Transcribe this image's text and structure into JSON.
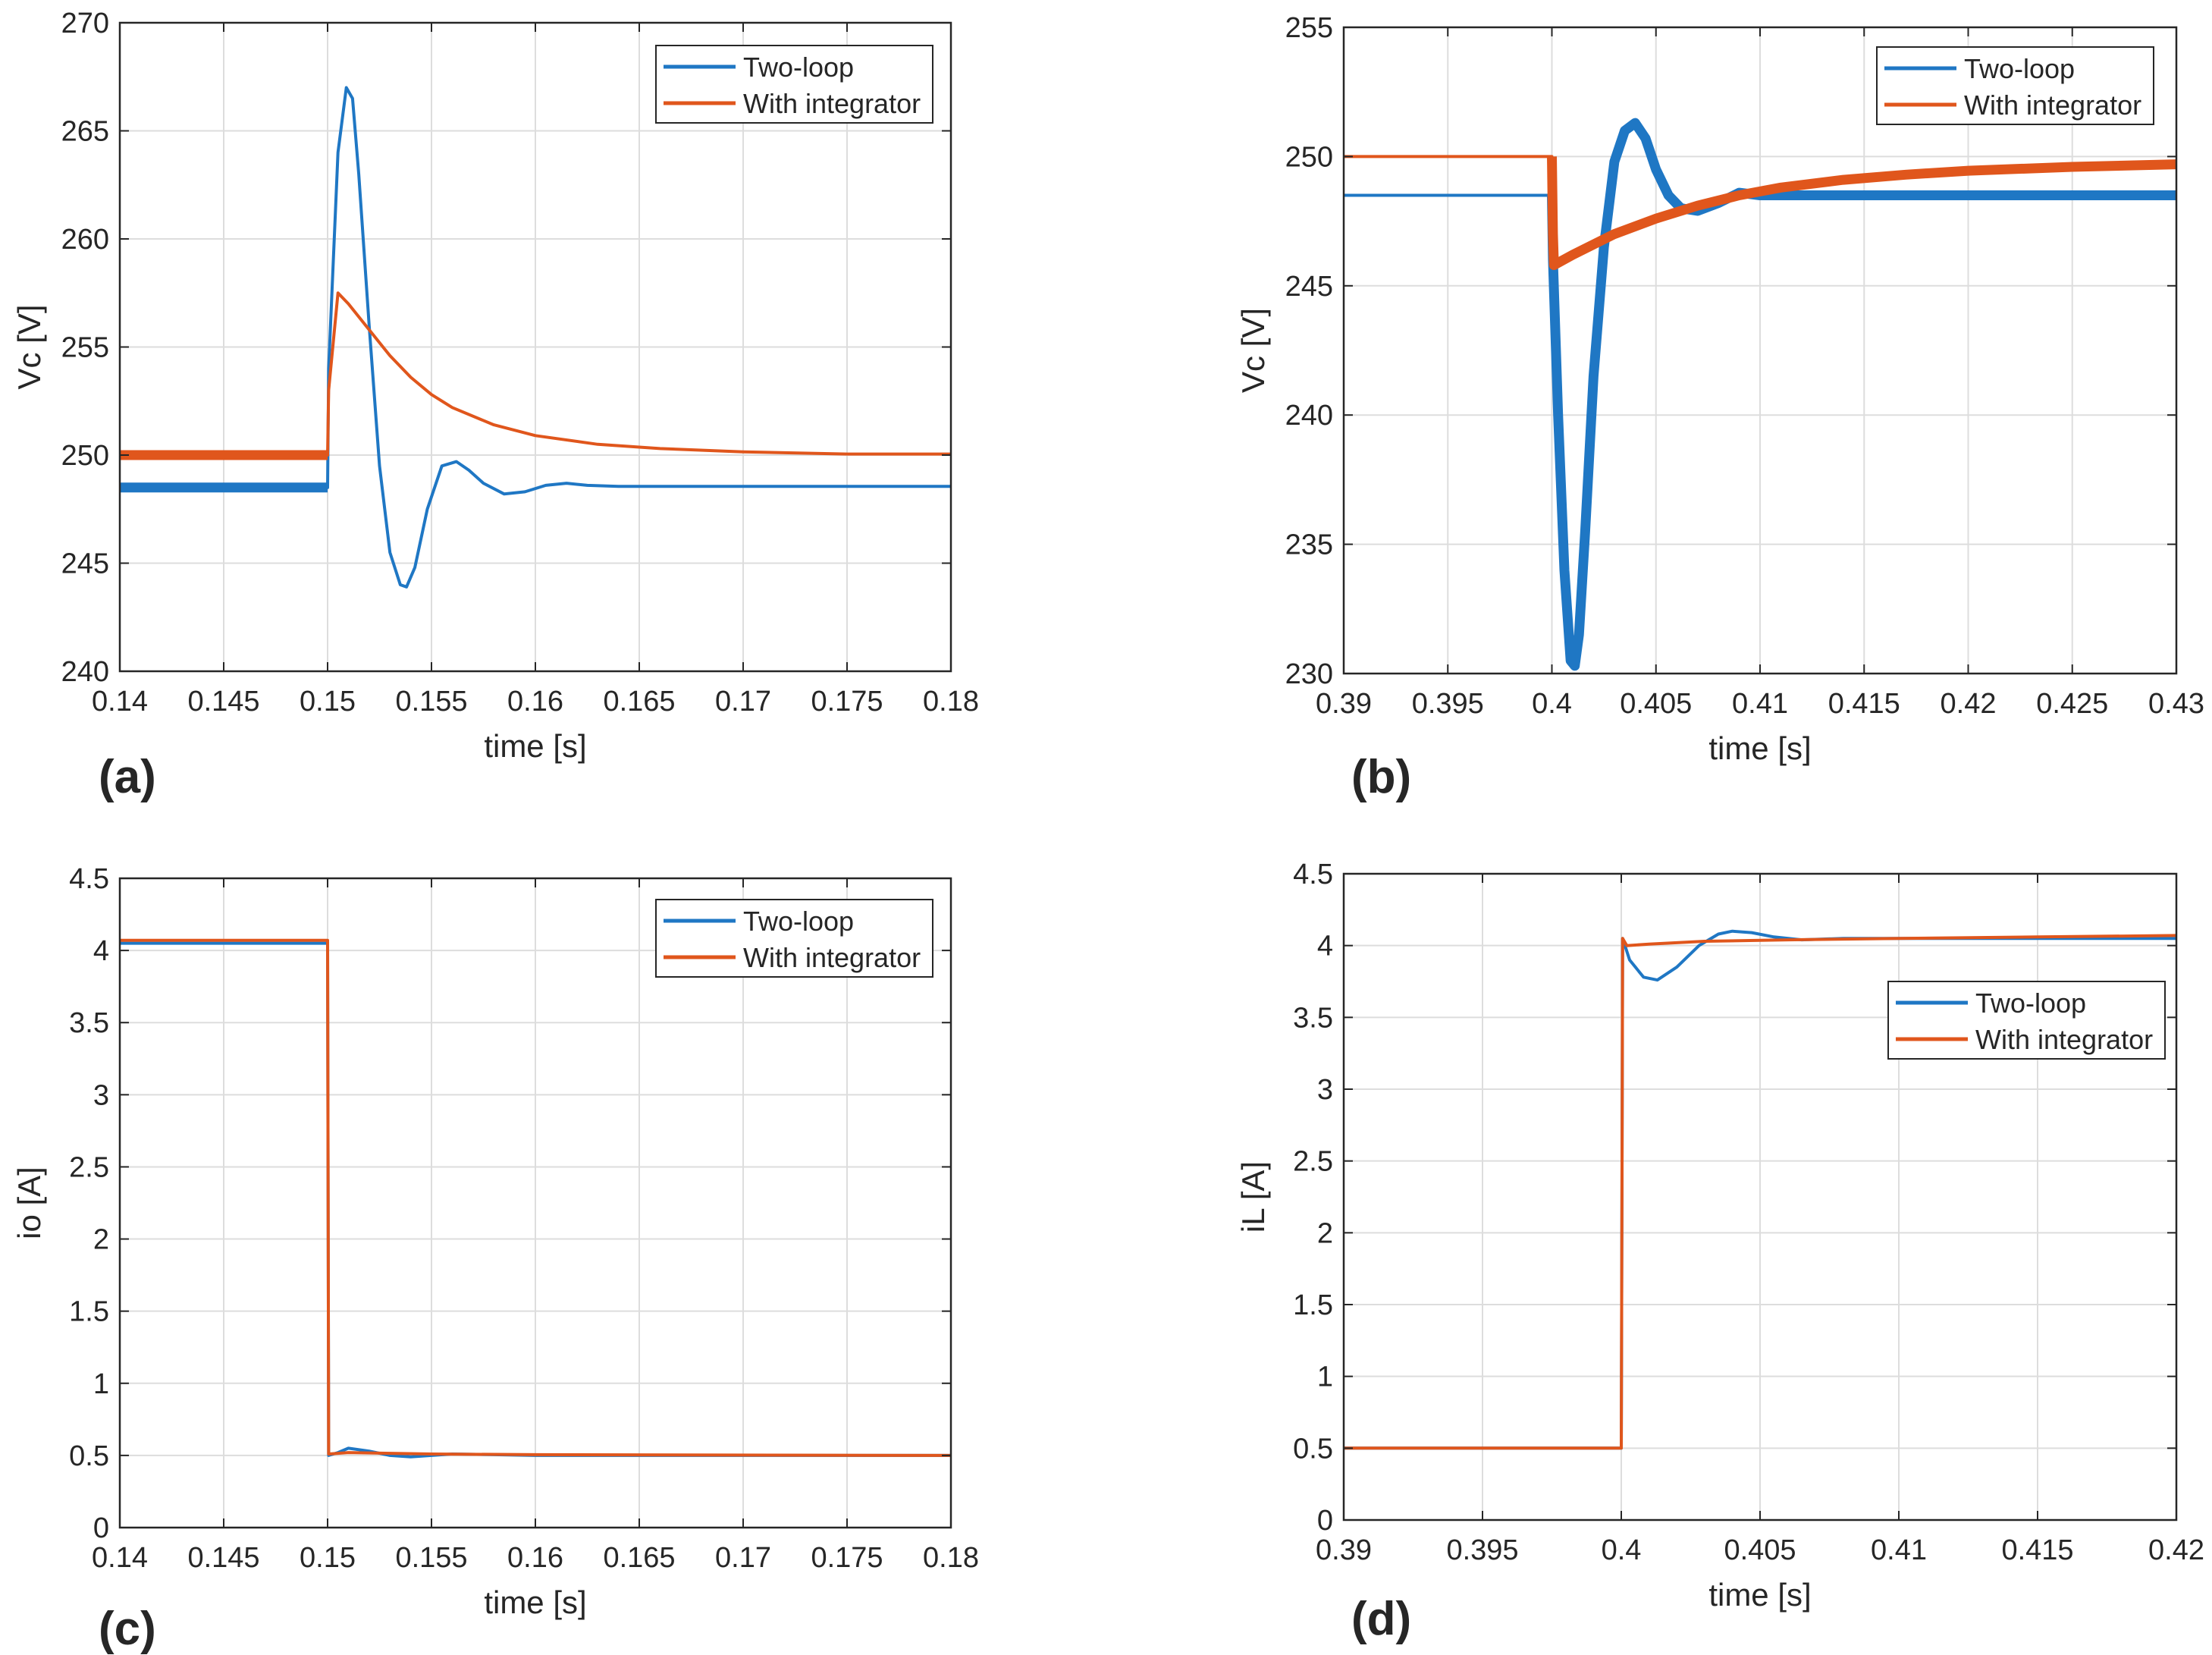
{
  "colors": {
    "two_loop": "#1f77c4",
    "integrator": "#e0561c",
    "grid": "#dddddd",
    "axis": "#262626"
  },
  "chart_data": [
    {
      "type": "line",
      "panel_label": "(a)",
      "xlabel": "time [s]",
      "ylabel": "Vc [V]",
      "xlim": [
        0.14,
        0.18
      ],
      "ylim": [
        240,
        270
      ],
      "xticks": [
        0.14,
        0.145,
        0.15,
        0.155,
        0.16,
        0.165,
        0.17,
        0.175,
        0.18
      ],
      "xtick_labels": [
        "0.14",
        "0.145",
        "0.15",
        "0.155",
        "0.16",
        "0.165",
        "0.17",
        "0.175",
        "0.18"
      ],
      "yticks": [
        240,
        245,
        250,
        255,
        260,
        265,
        270
      ],
      "ytick_labels": [
        "240",
        "245",
        "250",
        "255",
        "260",
        "265",
        "270"
      ],
      "grid": true,
      "legend_position": "top-right",
      "series": [
        {
          "name": "Two-loop",
          "color": "#1f77c4",
          "x": [
            0.14,
            0.15,
            0.15005,
            0.1505,
            0.1509,
            0.1512,
            0.1515,
            0.152,
            0.1525,
            0.153,
            0.1535,
            0.1538,
            0.1542,
            0.1548,
            0.1555,
            0.1562,
            0.1568,
            0.1575,
            0.1585,
            0.1595,
            0.1605,
            0.1615,
            0.1625,
            0.164,
            0.17,
            0.18
          ],
          "y": [
            248.5,
            248.5,
            254,
            264,
            267,
            266.5,
            263,
            256,
            249.5,
            245.5,
            244,
            243.9,
            244.8,
            247.5,
            249.5,
            249.7,
            249.3,
            248.7,
            248.2,
            248.3,
            248.6,
            248.7,
            248.6,
            248.55,
            248.55,
            248.55
          ],
          "thick_until": 0.15
        },
        {
          "name": "With integrator",
          "color": "#e0561c",
          "x": [
            0.14,
            0.15,
            0.15005,
            0.1505,
            0.151,
            0.152,
            0.153,
            0.154,
            0.155,
            0.156,
            0.158,
            0.16,
            0.163,
            0.166,
            0.17,
            0.175,
            0.18
          ],
          "y": [
            250,
            250,
            253,
            257.5,
            257,
            255.8,
            254.6,
            253.6,
            252.8,
            252.2,
            251.4,
            250.9,
            250.5,
            250.3,
            250.15,
            250.05,
            250.05
          ],
          "thick_until": 0.15
        }
      ]
    },
    {
      "type": "line",
      "panel_label": "(b)",
      "xlabel": "time [s]",
      "ylabel": "Vc [V]",
      "xlim": [
        0.39,
        0.43
      ],
      "ylim": [
        230,
        255
      ],
      "xticks": [
        0.39,
        0.395,
        0.4,
        0.405,
        0.41,
        0.415,
        0.42,
        0.425,
        0.43
      ],
      "xtick_labels": [
        "0.39",
        "0.395",
        "0.4",
        "0.405",
        "0.41",
        "0.415",
        "0.42",
        "0.425",
        "0.43"
      ],
      "yticks": [
        230,
        235,
        240,
        245,
        250,
        255
      ],
      "ytick_labels": [
        "230",
        "235",
        "240",
        "245",
        "250",
        "255"
      ],
      "grid": true,
      "legend_position": "top-right",
      "series": [
        {
          "name": "Two-loop",
          "color": "#1f77c4",
          "x": [
            0.39,
            0.4,
            0.40005,
            0.4003,
            0.4006,
            0.4009,
            0.4011,
            0.4013,
            0.4016,
            0.402,
            0.4025,
            0.403,
            0.4035,
            0.404,
            0.4045,
            0.405,
            0.4056,
            0.4062,
            0.407,
            0.408,
            0.409,
            0.41,
            0.412,
            0.415,
            0.43
          ],
          "y": [
            248.5,
            248.5,
            246,
            240,
            234,
            230.5,
            230.3,
            231.5,
            235.5,
            241.5,
            246.5,
            249.8,
            251,
            251.3,
            250.7,
            249.5,
            248.5,
            248,
            247.9,
            248.2,
            248.6,
            248.5,
            248.5,
            248.5,
            248.5
          ],
          "thick_from": 0.4
        },
        {
          "name": "With integrator",
          "color": "#e0561c",
          "x": [
            0.39,
            0.4,
            0.40005,
            0.4001,
            0.401,
            0.403,
            0.405,
            0.407,
            0.409,
            0.411,
            0.414,
            0.417,
            0.42,
            0.425,
            0.43
          ],
          "y": [
            250,
            250,
            247,
            245.8,
            246.2,
            247,
            247.6,
            248.1,
            248.5,
            248.8,
            249.1,
            249.3,
            249.45,
            249.6,
            249.7
          ],
          "thick_from": 0.4
        }
      ]
    },
    {
      "type": "line",
      "panel_label": "(c)",
      "xlabel": "time [s]",
      "ylabel": "io [A]",
      "xlim": [
        0.14,
        0.18
      ],
      "ylim": [
        0,
        4.5
      ],
      "xticks": [
        0.14,
        0.145,
        0.15,
        0.155,
        0.16,
        0.165,
        0.17,
        0.175,
        0.18
      ],
      "xtick_labels": [
        "0.14",
        "0.145",
        "0.15",
        "0.155",
        "0.16",
        "0.165",
        "0.17",
        "0.175",
        "0.18"
      ],
      "yticks": [
        0,
        0.5,
        1,
        1.5,
        2,
        2.5,
        3,
        3.5,
        4,
        4.5
      ],
      "ytick_labels": [
        "0",
        "0.5",
        "1",
        "1.5",
        "2",
        "2.5",
        "3",
        "3.5",
        "4",
        "4.5"
      ],
      "grid": true,
      "legend_position": "top-right",
      "series": [
        {
          "name": "Two-loop",
          "color": "#1f77c4",
          "x": [
            0.14,
            0.15,
            0.15005,
            0.1505,
            0.151,
            0.152,
            0.153,
            0.154,
            0.155,
            0.156,
            0.158,
            0.16,
            0.18
          ],
          "y": [
            4.05,
            4.05,
            0.5,
            0.52,
            0.55,
            0.53,
            0.5,
            0.49,
            0.5,
            0.51,
            0.505,
            0.5,
            0.5
          ]
        },
        {
          "name": "With integrator",
          "color": "#e0561c",
          "x": [
            0.14,
            0.15,
            0.15005,
            0.151,
            0.155,
            0.16,
            0.18
          ],
          "y": [
            4.07,
            4.07,
            0.51,
            0.52,
            0.51,
            0.505,
            0.5
          ]
        }
      ]
    },
    {
      "type": "line",
      "panel_label": "(d)",
      "xlabel": "time [s]",
      "ylabel": "iL [A]",
      "xlim": [
        0.39,
        0.42
      ],
      "ylim": [
        0,
        4.5
      ],
      "xticks": [
        0.39,
        0.395,
        0.4,
        0.405,
        0.41,
        0.415,
        0.42
      ],
      "xtick_labels": [
        "0.39",
        "0.395",
        "0.4",
        "0.405",
        "0.41",
        "0.415",
        "0.42"
      ],
      "yticks": [
        0,
        0.5,
        1,
        1.5,
        2,
        2.5,
        3,
        3.5,
        4,
        4.5
      ],
      "ytick_labels": [
        "0",
        "0.5",
        "1",
        "1.5",
        "2",
        "2.5",
        "3",
        "3.5",
        "4",
        "4.5"
      ],
      "grid": true,
      "legend_position": "upper-right",
      "series": [
        {
          "name": "Two-loop",
          "color": "#1f77c4",
          "x": [
            0.39,
            0.4,
            0.40005,
            0.4003,
            0.4008,
            0.4013,
            0.402,
            0.4028,
            0.4035,
            0.404,
            0.4047,
            0.4055,
            0.4065,
            0.408,
            0.42
          ],
          "y": [
            0.5,
            0.5,
            4.05,
            3.9,
            3.78,
            3.76,
            3.85,
            4.0,
            4.08,
            4.1,
            4.09,
            4.06,
            4.04,
            4.05,
            4.05
          ]
        },
        {
          "name": "With integrator",
          "color": "#e0561c",
          "x": [
            0.39,
            0.4,
            0.40005,
            0.4002,
            0.401,
            0.403,
            0.406,
            0.41,
            0.415,
            0.42
          ],
          "y": [
            0.5,
            0.5,
            4.05,
            4.0,
            4.01,
            4.03,
            4.04,
            4.05,
            4.06,
            4.07
          ]
        }
      ]
    }
  ]
}
